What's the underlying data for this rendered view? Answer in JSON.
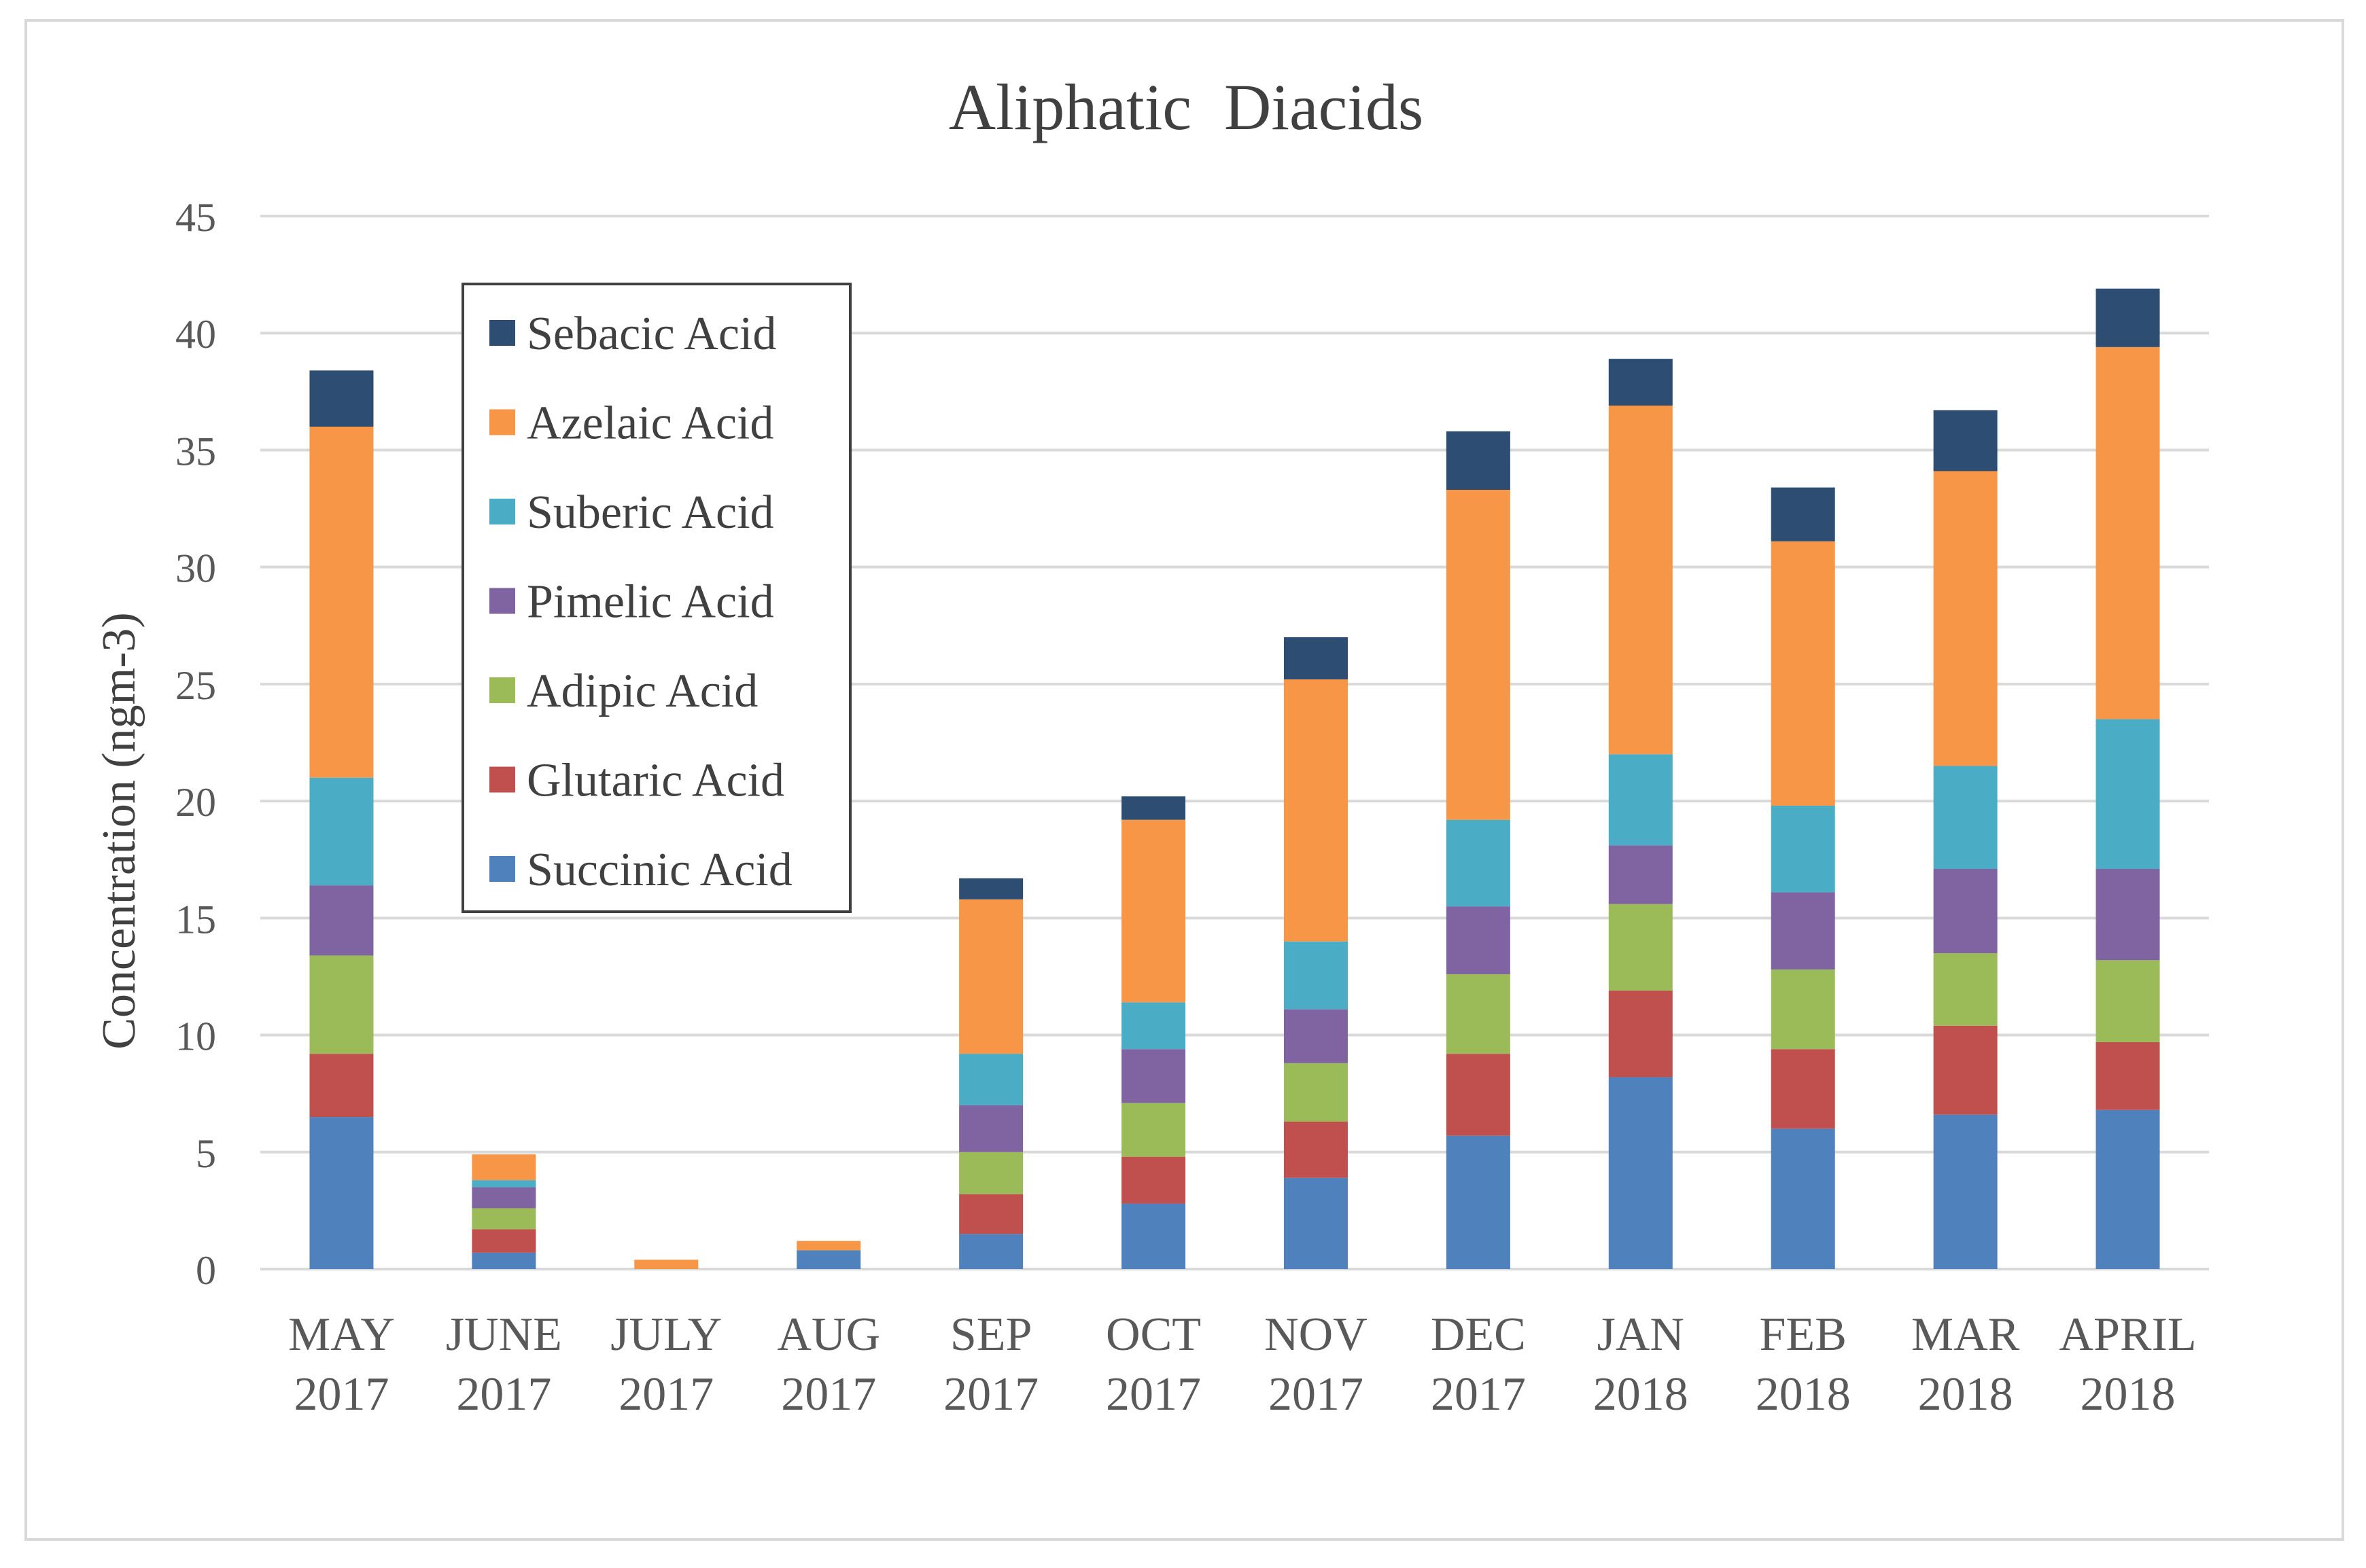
{
  "chart_data": {
    "type": "bar",
    "stacked": true,
    "title": "Aliphatic  Diacids",
    "ylabel": "Concentration (ngm-3)",
    "xlabel": "",
    "ylim": [
      0,
      45
    ],
    "yticks": [
      0,
      5,
      10,
      15,
      20,
      25,
      30,
      35,
      40,
      45
    ],
    "grid": true,
    "legend_position": "top-left",
    "categories": [
      [
        "MAY",
        "2017"
      ],
      [
        "JUNE",
        "2017"
      ],
      [
        "JULY",
        "2017"
      ],
      [
        "AUG",
        "2017"
      ],
      [
        "SEP",
        "2017"
      ],
      [
        "OCT",
        "2017"
      ],
      [
        "NOV",
        "2017"
      ],
      [
        "DEC",
        "2017"
      ],
      [
        "JAN",
        "2018"
      ],
      [
        "FEB",
        "2018"
      ],
      [
        "MAR",
        "2018"
      ],
      [
        "APRIL",
        "2018"
      ]
    ],
    "series": [
      {
        "name": "Succinic Acid",
        "color": "#4f81bd",
        "values": [
          6.5,
          0.7,
          0.0,
          0.8,
          1.5,
          2.8,
          3.9,
          5.7,
          8.2,
          6.0,
          6.6,
          6.8
        ]
      },
      {
        "name": "Glutaric Acid",
        "color": "#c0504d",
        "values": [
          2.7,
          1.0,
          0.0,
          0.0,
          1.7,
          2.0,
          2.4,
          3.5,
          3.7,
          3.4,
          3.8,
          2.9
        ]
      },
      {
        "name": "Adipic Acid",
        "color": "#9bbb59",
        "values": [
          4.2,
          0.9,
          0.0,
          0.0,
          1.8,
          2.3,
          2.5,
          3.4,
          3.7,
          3.4,
          3.1,
          3.5
        ]
      },
      {
        "name": "Pimelic Acid",
        "color": "#8064a2",
        "values": [
          3.0,
          0.9,
          0.0,
          0.0,
          2.0,
          2.3,
          2.3,
          2.9,
          2.5,
          3.3,
          3.6,
          3.9
        ]
      },
      {
        "name": "Suberic Acid",
        "color": "#4bacc6",
        "values": [
          4.6,
          0.3,
          0.0,
          0.0,
          2.2,
          2.0,
          2.9,
          3.7,
          3.9,
          3.7,
          4.4,
          6.4
        ]
      },
      {
        "name": "Azelaic Acid",
        "color": "#f79646",
        "values": [
          15.0,
          1.1,
          0.4,
          0.4,
          6.6,
          7.8,
          11.2,
          14.1,
          14.9,
          11.3,
          12.6,
          15.9
        ]
      },
      {
        "name": "Sebacic Acid",
        "color": "#2e4d73",
        "values": [
          2.4,
          0.0,
          0.0,
          0.0,
          0.9,
          1.0,
          1.8,
          2.5,
          2.0,
          2.3,
          2.6,
          2.5
        ]
      }
    ]
  }
}
